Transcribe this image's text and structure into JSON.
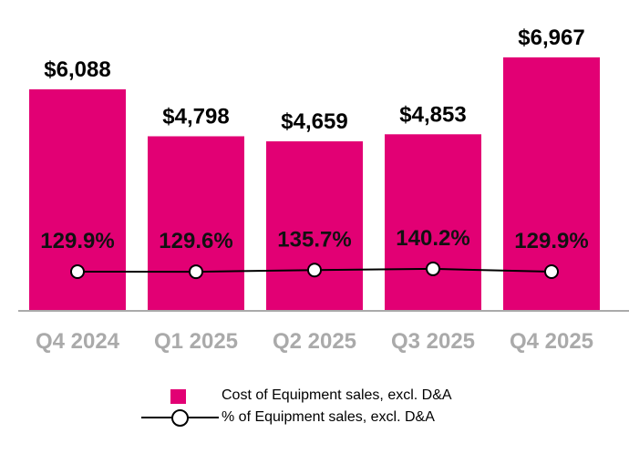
{
  "chart_data": {
    "type": "bar",
    "categories": [
      "Q4 2024",
      "Q1 2025",
      "Q2 2025",
      "Q3 2025",
      "Q4 2025"
    ],
    "series": [
      {
        "name": "Cost of Equipment sales, excl. D&A",
        "type": "bar",
        "values": [
          6088,
          4798,
          4659,
          4853,
          6967
        ],
        "labels": [
          "$6,088",
          "$4,798",
          "$4,659",
          "$4,853",
          "$6,967"
        ],
        "color": "#E20074"
      },
      {
        "name": "% of Equipment sales, excl. D&A",
        "type": "line",
        "values": [
          129.9,
          129.6,
          135.7,
          140.2,
          129.9
        ],
        "labels": [
          "129.9%",
          "129.6%",
          "135.7%",
          "140.2%",
          "129.9%"
        ],
        "color": "#000000"
      }
    ],
    "legend": "bottom",
    "grid": false
  }
}
